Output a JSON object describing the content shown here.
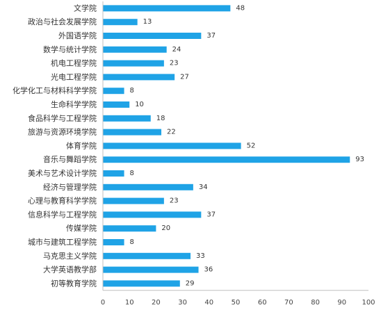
{
  "chart_data": {
    "type": "bar",
    "orientation": "horizontal",
    "title": "",
    "xlabel": "",
    "ylabel": "",
    "categories": [
      "文学院",
      "政治与社会发展学院",
      "外国语学院",
      "数学与统计学院",
      "机电工程学院",
      "光电工程学院",
      "化学化工与材料科学学院",
      "生命科学学院",
      "食品科学与工程学院",
      "旅游与资源环境学院",
      "体育学院",
      "音乐与舞蹈学院",
      "美术与艺术设计学院",
      "经济与管理学院",
      "心理与教育科学学院",
      "信息科学与工程学院",
      "传媒学院",
      "城市与建筑工程学院",
      "马克思主义学院",
      "大学英语教学部",
      "初等教育学院"
    ],
    "values": [
      48,
      13,
      37,
      24,
      23,
      27,
      8,
      10,
      18,
      22,
      52,
      93,
      8,
      34,
      23,
      37,
      20,
      8,
      33,
      36,
      29
    ],
    "xlim": [
      0,
      100
    ],
    "xticks": [
      0,
      10,
      20,
      30,
      40,
      50,
      60,
      70,
      80,
      90,
      100
    ],
    "bar_color": "#1fa3e6",
    "grid": false,
    "legend": "none"
  }
}
